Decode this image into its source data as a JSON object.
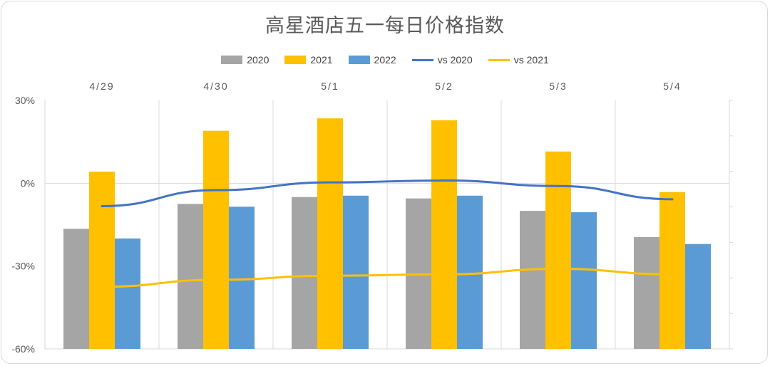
{
  "chart_data": {
    "type": "bar",
    "title": "高星酒店五一每日价格指数",
    "categories": [
      "4/29",
      "4/30",
      "5/1",
      "5/2",
      "5/3",
      "5/4"
    ],
    "series": [
      {
        "name": "2020",
        "kind": "bar",
        "color": "#a5a5a5",
        "values": [
          -16.5,
          -7.5,
          -5,
          -5.5,
          -10,
          -19.5
        ]
      },
      {
        "name": "2021",
        "kind": "bar",
        "color": "#ffc000",
        "values": [
          4.2,
          19,
          23.5,
          22.8,
          11.5,
          -3.2
        ]
      },
      {
        "name": "2022",
        "kind": "bar",
        "color": "#5b9bd5",
        "values": [
          -20,
          -8.5,
          -4.5,
          -4.5,
          -10.5,
          -22
        ]
      },
      {
        "name": "vs 2020",
        "kind": "line",
        "color": "#4472c4",
        "values": [
          -8.3,
          -2.5,
          0.3,
          1.0,
          -1.0,
          -5.8
        ]
      },
      {
        "name": "vs 2021",
        "kind": "line",
        "color": "#ffc000",
        "values": [
          -37.5,
          -35,
          -33.5,
          -33,
          -31,
          -33
        ]
      }
    ],
    "y_ticks": [
      "30%",
      "0%",
      "-30%",
      "-60%"
    ],
    "ylim": [
      -60,
      30
    ],
    "grid": "vertical separators and zero line",
    "legend_position": "top"
  }
}
